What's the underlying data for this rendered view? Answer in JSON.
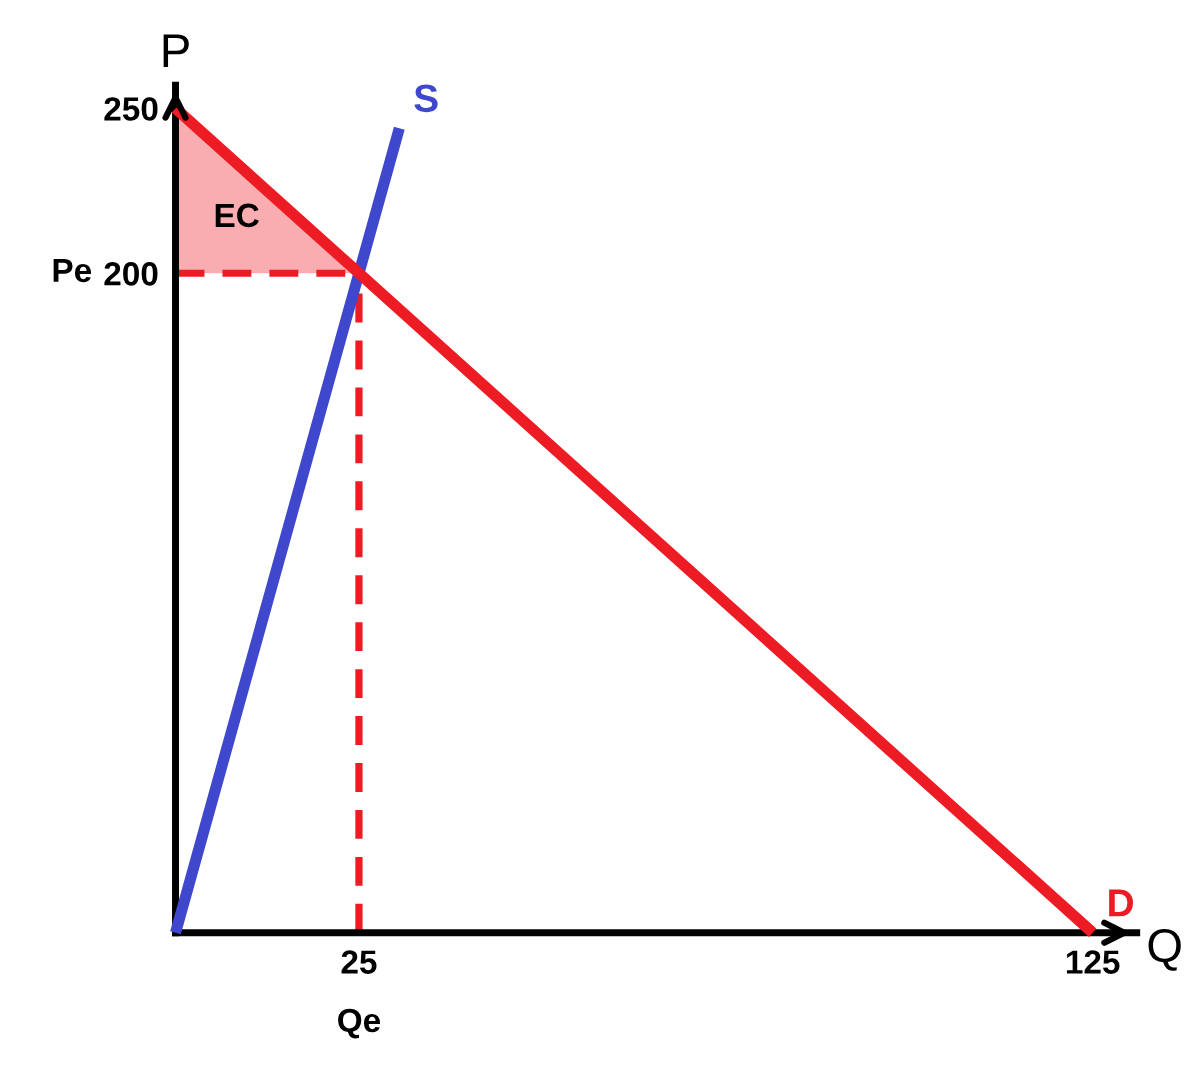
{
  "chart_data": {
    "type": "line",
    "xlabel": "Q",
    "ylabel": "P",
    "xlim": [
      0,
      131
    ],
    "ylim": [
      0,
      257
    ],
    "xticks": [
      25,
      125
    ],
    "yticks": [
      200,
      250
    ],
    "series": [
      {
        "name": "S",
        "color": "#3f48cc",
        "line_style": "solid",
        "x": [
          0,
          25,
          30.5
        ],
        "values": [
          0,
          200,
          244
        ]
      },
      {
        "name": "D",
        "color": "#ed1c24",
        "line_style": "solid",
        "x": [
          0,
          25,
          125
        ],
        "values": [
          250,
          200,
          0
        ],
        "lower": [
          200,
          200,
          null
        ],
        "upper": [
          250,
          200,
          null
        ]
      }
    ],
    "ref_lines": [
      {
        "axis": "y",
        "value": 200,
        "label": "Pe",
        "color": "#ed1c24",
        "line_style": "dashed"
      },
      {
        "axis": "x",
        "value": 25,
        "label": "Qe",
        "color": "#ed1c24",
        "line_style": "dashed"
      }
    ],
    "annotations": [
      "EC"
    ],
    "grid": false,
    "legend": false
  }
}
